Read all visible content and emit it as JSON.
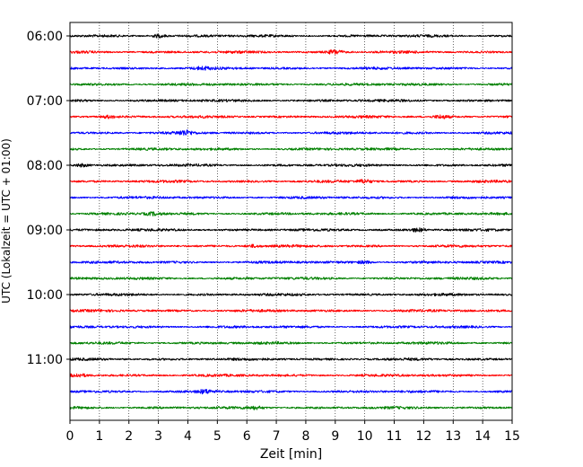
{
  "chart_data": {
    "type": "line",
    "title": "",
    "xlabel": "Zeit  [min]",
    "ylabel": "UTC (Lokalzeit = UTC + 01:00)",
    "xlim": [
      0,
      15
    ],
    "x_ticks": [
      "0",
      "1",
      "2",
      "3",
      "4",
      "5",
      "6",
      "7",
      "8",
      "9",
      "10",
      "11",
      "12",
      "13",
      "14",
      "15"
    ],
    "y_ticks": [
      {
        "label": "06:00",
        "trace_index": 0
      },
      {
        "label": "07:00",
        "trace_index": 4
      },
      {
        "label": "08:00",
        "trace_index": 8
      },
      {
        "label": "09:00",
        "trace_index": 12
      },
      {
        "label": "10:00",
        "trace_index": 16
      },
      {
        "label": "11:00",
        "trace_index": 20
      }
    ],
    "trace_interval_min": 15,
    "trace_count": 24,
    "start_time": "06:00",
    "colors": [
      "#000000",
      "#ff0000",
      "#0000ff",
      "#008000"
    ],
    "grid": {
      "x": "dotted",
      "y": false
    },
    "legend": "none",
    "events": [
      {
        "trace": 0,
        "t": 3.0,
        "amp": 1.6
      },
      {
        "trace": 1,
        "t": 9.0,
        "amp": 2.0
      },
      {
        "trace": 2,
        "t": 4.5,
        "amp": 1.2
      },
      {
        "trace": 5,
        "t": 1.3,
        "amp": 1.4
      },
      {
        "trace": 5,
        "t": 12.6,
        "amp": 1.5
      },
      {
        "trace": 6,
        "t": 3.9,
        "amp": 2.2
      },
      {
        "trace": 8,
        "t": 0.4,
        "amp": 1.6
      },
      {
        "trace": 9,
        "t": 10.0,
        "amp": 1.8
      },
      {
        "trace": 11,
        "t": 2.8,
        "amp": 1.4
      },
      {
        "trace": 12,
        "t": 11.8,
        "amp": 1.6
      },
      {
        "trace": 13,
        "t": 6.2,
        "amp": 1.3
      },
      {
        "trace": 14,
        "t": 10.0,
        "amp": 1.3
      },
      {
        "trace": 21,
        "t": 0.3,
        "amp": 1.4
      },
      {
        "trace": 22,
        "t": 4.6,
        "amp": 1.8
      },
      {
        "trace": 23,
        "t": 6.3,
        "amp": 1.2
      }
    ]
  }
}
